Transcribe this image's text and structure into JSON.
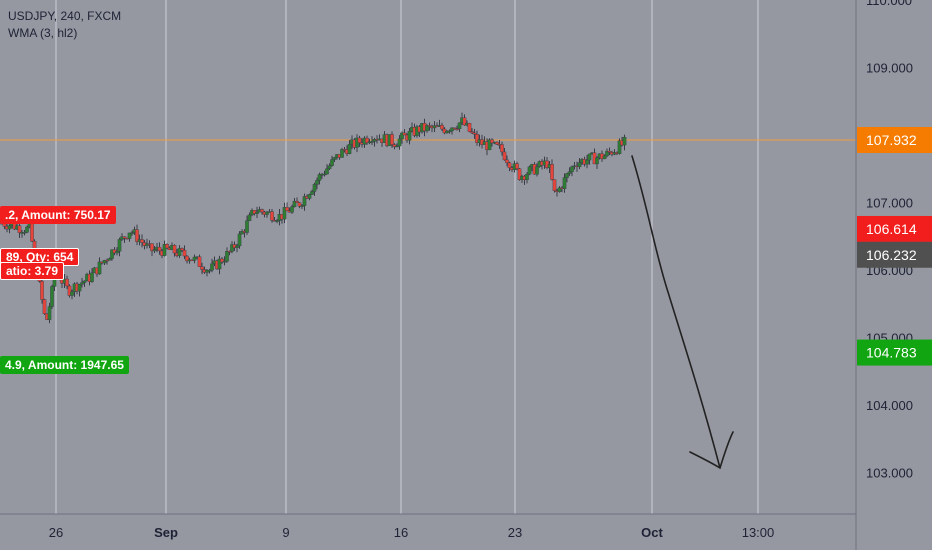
{
  "header": {
    "symbol_line": "USDJPY, 240, FXCM",
    "indicator_line": "WMA (3, hl2)"
  },
  "colors": {
    "background": "#9598a1",
    "grid": "#cdd0d6",
    "price_line": "#f39a3f",
    "bull": "#2e7d32",
    "bear": "#e5453b",
    "wick": "#3a3d48",
    "red_tag": "#f21d1d",
    "gray_tag": "#505050",
    "green_tag": "#11a611",
    "orange_tag": "#f57c00",
    "arrow": "#222"
  },
  "overlays": {
    "sell_label": ".2, Amount: 750.17",
    "mid_label_1": "89, Qty: 654",
    "mid_label_2": "atio: 3.79",
    "buy_label": "4.9, Amount: 1947.65"
  },
  "chart_data": {
    "type": "candlestick",
    "x_tick_labels": [
      "26",
      "Sep",
      "9",
      "16",
      "23",
      "Oct",
      "13:00"
    ],
    "y_tick_labels": [
      "110.000",
      "109.000",
      "108.000",
      "107.000",
      "106.000",
      "105.000",
      "104.000",
      "103.000"
    ],
    "ylim": [
      102.6,
      110.1
    ],
    "price_tags": [
      {
        "label": "107.932",
        "value": 107.932,
        "color": "orange"
      },
      {
        "label": "106.614",
        "value": 106.614,
        "color": "red"
      },
      {
        "label": "106.232",
        "value": 106.232,
        "color": "gray"
      },
      {
        "label": "104.783",
        "value": 104.783,
        "color": "green"
      }
    ],
    "current_price": 107.932,
    "close_path": [
      {
        "day": "Aug 21",
        "close": 106.7
      },
      {
        "day": "Aug 24",
        "close": 106.6
      },
      {
        "day": "Aug 25",
        "close": 105.2
      },
      {
        "day": "Aug 26",
        "close": 106.0
      },
      {
        "day": "Aug 27",
        "close": 105.7
      },
      {
        "day": "Aug 28",
        "close": 105.9
      },
      {
        "day": "Aug 31",
        "close": 106.6
      },
      {
        "day": "Sep 1",
        "close": 106.3
      },
      {
        "day": "Sep 2",
        "close": 106.3
      },
      {
        "day": "Sep 3",
        "close": 106.2
      },
      {
        "day": "Sep 4",
        "close": 106.0
      },
      {
        "day": "Sep 7",
        "close": 106.3
      },
      {
        "day": "Sep 8",
        "close": 106.9
      },
      {
        "day": "Sep 9",
        "close": 106.8
      },
      {
        "day": "Sep 10",
        "close": 107.0
      },
      {
        "day": "Sep 11",
        "close": 107.4
      },
      {
        "day": "Sep 14",
        "close": 107.8
      },
      {
        "day": "Sep 15",
        "close": 108.0
      },
      {
        "day": "Sep 16",
        "close": 107.9
      },
      {
        "day": "Sep 17",
        "close": 108.1
      },
      {
        "day": "Sep 18",
        "close": 108.1
      },
      {
        "day": "Sep 21",
        "close": 108.2
      },
      {
        "day": "Sep 22",
        "close": 107.9
      },
      {
        "day": "Sep 23",
        "close": 107.8
      },
      {
        "day": "Sep 24",
        "close": 107.4
      },
      {
        "day": "Sep 25",
        "close": 107.6
      },
      {
        "day": "Sep 28",
        "close": 107.1
      },
      {
        "day": "Sep 29",
        "close": 107.6
      },
      {
        "day": "Sep 30",
        "close": 107.7
      },
      {
        "day": "Oct 1",
        "close": 107.9
      }
    ],
    "grid": true
  }
}
